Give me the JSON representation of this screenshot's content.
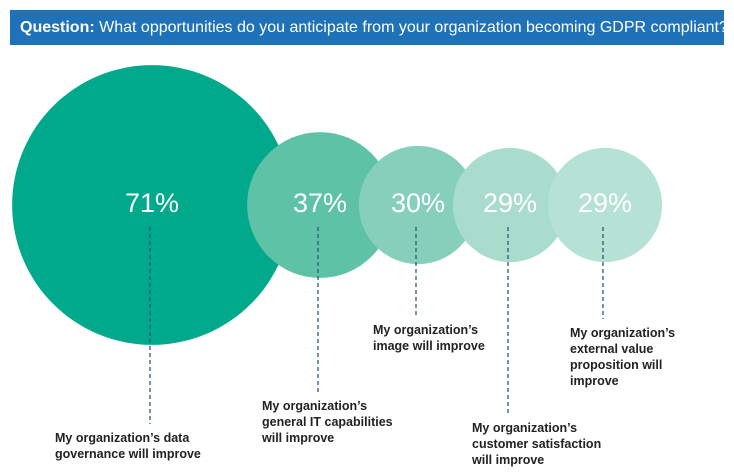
{
  "chart_data": {
    "type": "bubble",
    "title_label": "Question:",
    "title": "What opportunities do you anticipate from your organization becoming GDPR compliant?",
    "categories": [
      "My organization’s data governance will improve",
      "My organization’s general IT capabilities will improve",
      "My organization’s image will improve",
      "My organization’s customer satisfaction will improve",
      "My organization’s external value proposition will improve"
    ],
    "values": [
      71,
      37,
      30,
      29,
      29
    ],
    "value_labels": [
      "71%",
      "37%",
      "30%",
      "29%",
      "29%"
    ],
    "colors": [
      "#00a98c",
      "#5ec2a6",
      "#86d0bb",
      "#a9dccd",
      "#b5e2d5"
    ]
  }
}
